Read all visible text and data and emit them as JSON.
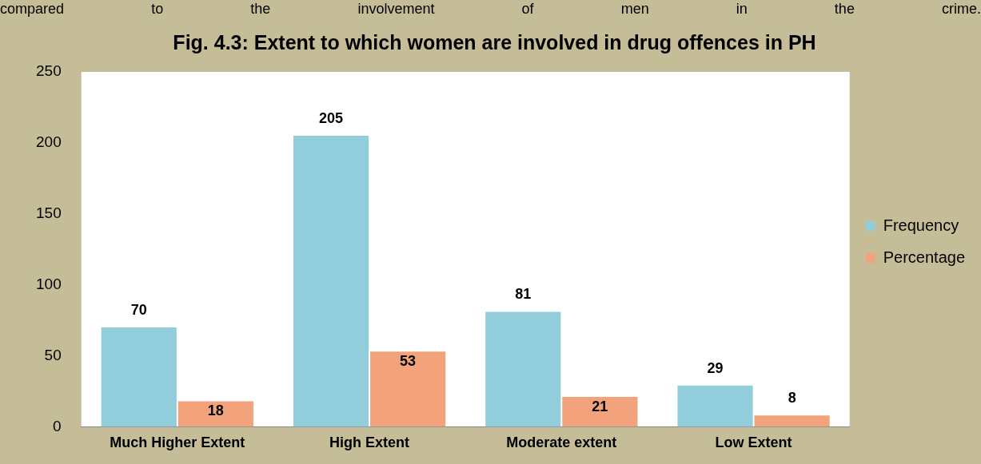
{
  "chart_data": {
    "type": "bar",
    "title": "Fig. 4.3: Extent to which women are involved in drug offences in PH",
    "annotations": [
      "compared to the involvement of men in the crime."
    ],
    "categories": [
      "Much Higher Extent",
      "High Extent",
      "Moderate extent",
      "Low Extent"
    ],
    "series": [
      {
        "name": "Frequency",
        "color": "#92cddc",
        "values": [
          70,
          205,
          81,
          29
        ]
      },
      {
        "name": "Percentage",
        "color": "#f2a37c",
        "values": [
          18,
          53,
          21,
          8
        ]
      }
    ],
    "ylim": [
      0,
      250
    ],
    "yticks": [
      0,
      50,
      100,
      150,
      200,
      250
    ],
    "grid": false,
    "legend": "right",
    "data_labels": true
  }
}
